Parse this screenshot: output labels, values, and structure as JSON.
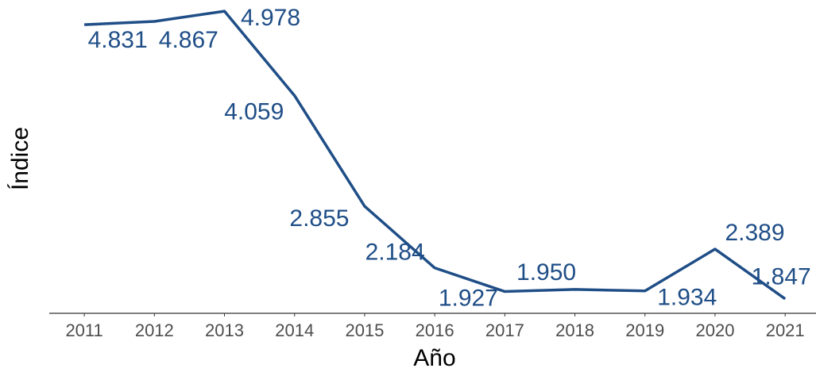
{
  "chart_data": {
    "type": "line",
    "x_label": "Año",
    "y_label": "Índice",
    "x": [
      2011,
      2012,
      2013,
      2014,
      2015,
      2016,
      2017,
      2018,
      2019,
      2020,
      2021
    ],
    "series": [
      {
        "name": "Índice",
        "color": "#1f4e87",
        "values": [
          4.831,
          4.867,
          4.978,
          4.059,
          2.855,
          2.184,
          1.927,
          1.95,
          1.934,
          2.389,
          1.847
        ],
        "value_labels": [
          "4.831",
          "4.867",
          "4.978",
          "4.059",
          "2.855",
          "2.184",
          "1.927",
          "1.950",
          "1.934",
          "2.389",
          "1.847"
        ]
      }
    ],
    "xlim": [
      2010.5,
      2021.44
    ],
    "xticks": [
      2011,
      2012,
      2013,
      2014,
      2015,
      2016,
      2017,
      2018,
      2019,
      2020,
      2021
    ],
    "ylim": [
      1.69,
      5.1
    ]
  }
}
